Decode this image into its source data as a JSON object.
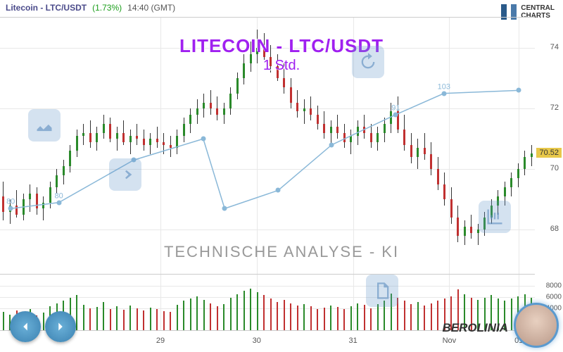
{
  "header": {
    "name": "Litecoin - LTC/USDT",
    "change": "(1.73%)",
    "time": "14:40 (GMT)"
  },
  "logo": {
    "line1": "CENTRAL",
    "line2": "CHARTS"
  },
  "title": "LITECOIN - LTC/USDT",
  "subtitle": "1 Std.",
  "analysis": "TECHNISCHE  ANALYSE - KI",
  "berolinia": "BEROLINIA",
  "price_tag": 70.52,
  "chart": {
    "ylim": [
      66.5,
      75
    ],
    "yticks": [
      68,
      70,
      72,
      74
    ],
    "grid_color": "#e8e8e8",
    "bg": "#ffffff",
    "up_color": "#2a8a2a",
    "down_color": "#c03030",
    "wick_color": "#333333",
    "line_color": "#8ab8d8",
    "candles": [
      {
        "o": 69.1,
        "h": 69.6,
        "l": 68.3,
        "c": 68.6
      },
      {
        "o": 68.6,
        "h": 69.0,
        "l": 68.2,
        "c": 68.8
      },
      {
        "o": 68.8,
        "h": 69.3,
        "l": 68.4,
        "c": 68.5
      },
      {
        "o": 68.5,
        "h": 69.2,
        "l": 68.3,
        "c": 69.0
      },
      {
        "o": 69.0,
        "h": 69.5,
        "l": 68.6,
        "c": 69.2
      },
      {
        "o": 69.2,
        "h": 69.4,
        "l": 68.5,
        "c": 68.7
      },
      {
        "o": 68.7,
        "h": 69.1,
        "l": 68.3,
        "c": 68.9
      },
      {
        "o": 68.9,
        "h": 69.6,
        "l": 68.7,
        "c": 69.4
      },
      {
        "o": 69.4,
        "h": 70.0,
        "l": 69.2,
        "c": 69.8
      },
      {
        "o": 69.8,
        "h": 70.3,
        "l": 69.5,
        "c": 70.1
      },
      {
        "o": 70.1,
        "h": 70.8,
        "l": 69.9,
        "c": 70.6
      },
      {
        "o": 70.6,
        "h": 71.3,
        "l": 70.4,
        "c": 71.1
      },
      {
        "o": 71.1,
        "h": 71.5,
        "l": 70.8,
        "c": 71.2
      },
      {
        "o": 71.2,
        "h": 71.6,
        "l": 70.7,
        "c": 70.9
      },
      {
        "o": 70.9,
        "h": 71.4,
        "l": 70.6,
        "c": 71.2
      },
      {
        "o": 71.2,
        "h": 71.8,
        "l": 71.0,
        "c": 71.5
      },
      {
        "o": 71.5,
        "h": 71.7,
        "l": 70.9,
        "c": 71.0
      },
      {
        "o": 71.0,
        "h": 71.4,
        "l": 70.6,
        "c": 71.2
      },
      {
        "o": 71.2,
        "h": 71.6,
        "l": 70.8,
        "c": 70.9
      },
      {
        "o": 70.9,
        "h": 71.3,
        "l": 70.5,
        "c": 71.1
      },
      {
        "o": 71.1,
        "h": 71.5,
        "l": 70.8,
        "c": 71.0
      },
      {
        "o": 71.0,
        "h": 71.3,
        "l": 70.6,
        "c": 70.8
      },
      {
        "o": 70.8,
        "h": 71.2,
        "l": 70.5,
        "c": 71.0
      },
      {
        "o": 71.0,
        "h": 71.4,
        "l": 70.7,
        "c": 70.9
      },
      {
        "o": 70.9,
        "h": 71.2,
        "l": 70.5,
        "c": 70.8
      },
      {
        "o": 70.8,
        "h": 71.1,
        "l": 70.4,
        "c": 70.7
      },
      {
        "o": 70.7,
        "h": 71.3,
        "l": 70.5,
        "c": 71.1
      },
      {
        "o": 71.1,
        "h": 71.7,
        "l": 70.9,
        "c": 71.5
      },
      {
        "o": 71.5,
        "h": 72.0,
        "l": 71.2,
        "c": 71.8
      },
      {
        "o": 71.8,
        "h": 72.3,
        "l": 71.5,
        "c": 72.0
      },
      {
        "o": 72.0,
        "h": 72.5,
        "l": 71.7,
        "c": 72.2
      },
      {
        "o": 72.2,
        "h": 72.6,
        "l": 71.8,
        "c": 72.0
      },
      {
        "o": 72.0,
        "h": 72.4,
        "l": 71.6,
        "c": 71.8
      },
      {
        "o": 71.8,
        "h": 72.2,
        "l": 71.5,
        "c": 72.0
      },
      {
        "o": 72.0,
        "h": 72.7,
        "l": 71.8,
        "c": 72.5
      },
      {
        "o": 72.5,
        "h": 73.2,
        "l": 72.3,
        "c": 73.0
      },
      {
        "o": 73.0,
        "h": 73.8,
        "l": 72.8,
        "c": 73.5
      },
      {
        "o": 73.5,
        "h": 74.2,
        "l": 73.2,
        "c": 73.8
      },
      {
        "o": 73.8,
        "h": 74.6,
        "l": 73.5,
        "c": 74.0
      },
      {
        "o": 74.0,
        "h": 74.5,
        "l": 73.6,
        "c": 73.7
      },
      {
        "o": 73.7,
        "h": 74.1,
        "l": 73.2,
        "c": 73.4
      },
      {
        "o": 73.4,
        "h": 73.8,
        "l": 72.9,
        "c": 73.0
      },
      {
        "o": 73.0,
        "h": 73.5,
        "l": 72.5,
        "c": 72.7
      },
      {
        "o": 72.7,
        "h": 73.0,
        "l": 72.0,
        "c": 72.2
      },
      {
        "o": 72.2,
        "h": 72.6,
        "l": 71.7,
        "c": 71.9
      },
      {
        "o": 71.9,
        "h": 72.3,
        "l": 71.5,
        "c": 72.0
      },
      {
        "o": 72.0,
        "h": 72.4,
        "l": 71.6,
        "c": 71.8
      },
      {
        "o": 71.8,
        "h": 72.1,
        "l": 71.3,
        "c": 71.5
      },
      {
        "o": 71.5,
        "h": 71.9,
        "l": 71.0,
        "c": 71.2
      },
      {
        "o": 71.2,
        "h": 71.6,
        "l": 70.8,
        "c": 71.4
      },
      {
        "o": 71.4,
        "h": 71.8,
        "l": 71.0,
        "c": 71.2
      },
      {
        "o": 71.2,
        "h": 71.5,
        "l": 70.7,
        "c": 70.9
      },
      {
        "o": 70.9,
        "h": 71.3,
        "l": 70.5,
        "c": 71.1
      },
      {
        "o": 71.1,
        "h": 71.6,
        "l": 70.8,
        "c": 71.4
      },
      {
        "o": 71.4,
        "h": 71.8,
        "l": 71.0,
        "c": 71.2
      },
      {
        "o": 71.2,
        "h": 71.5,
        "l": 70.7,
        "c": 70.9
      },
      {
        "o": 70.9,
        "h": 71.4,
        "l": 70.6,
        "c": 71.2
      },
      {
        "o": 71.2,
        "h": 71.7,
        "l": 70.9,
        "c": 71.5
      },
      {
        "o": 71.5,
        "h": 72.2,
        "l": 71.2,
        "c": 71.9
      },
      {
        "o": 71.9,
        "h": 72.4,
        "l": 71.2,
        "c": 71.3
      },
      {
        "o": 71.3,
        "h": 71.8,
        "l": 70.6,
        "c": 70.8
      },
      {
        "o": 70.8,
        "h": 71.2,
        "l": 70.2,
        "c": 70.4
      },
      {
        "o": 70.4,
        "h": 71.0,
        "l": 70.0,
        "c": 70.7
      },
      {
        "o": 70.7,
        "h": 71.2,
        "l": 70.3,
        "c": 70.5
      },
      {
        "o": 70.5,
        "h": 70.9,
        "l": 69.8,
        "c": 70.0
      },
      {
        "o": 70.0,
        "h": 70.4,
        "l": 69.3,
        "c": 69.5
      },
      {
        "o": 69.5,
        "h": 69.9,
        "l": 68.8,
        "c": 69.0
      },
      {
        "o": 69.0,
        "h": 69.4,
        "l": 68.2,
        "c": 68.4
      },
      {
        "o": 68.4,
        "h": 68.8,
        "l": 67.6,
        "c": 67.8
      },
      {
        "o": 67.8,
        "h": 68.3,
        "l": 67.5,
        "c": 68.1
      },
      {
        "o": 68.1,
        "h": 68.5,
        "l": 67.7,
        "c": 67.9
      },
      {
        "o": 67.9,
        "h": 68.2,
        "l": 67.5,
        "c": 68.0
      },
      {
        "o": 68.0,
        "h": 68.6,
        "l": 67.8,
        "c": 68.4
      },
      {
        "o": 68.4,
        "h": 69.0,
        "l": 68.2,
        "c": 68.8
      },
      {
        "o": 68.8,
        "h": 69.3,
        "l": 68.5,
        "c": 69.1
      },
      {
        "o": 69.1,
        "h": 69.6,
        "l": 68.8,
        "c": 69.4
      },
      {
        "o": 69.4,
        "h": 69.9,
        "l": 69.1,
        "c": 69.7
      },
      {
        "o": 69.7,
        "h": 70.2,
        "l": 69.4,
        "c": 70.0
      },
      {
        "o": 70.0,
        "h": 70.6,
        "l": 69.8,
        "c": 70.4
      },
      {
        "o": 70.4,
        "h": 70.8,
        "l": 70.1,
        "c": 70.52
      }
    ],
    "line_points": [
      {
        "x": 0.02,
        "y": 68.7,
        "label": "80"
      },
      {
        "x": 0.11,
        "y": 68.9,
        "label": "80"
      },
      {
        "x": 0.25,
        "y": 70.3,
        "label": ""
      },
      {
        "x": 0.38,
        "y": 71.0,
        "label": ""
      },
      {
        "x": 0.42,
        "y": 68.7,
        "label": ""
      },
      {
        "x": 0.52,
        "y": 69.3,
        "label": ""
      },
      {
        "x": 0.62,
        "y": 70.8,
        "label": ""
      },
      {
        "x": 0.74,
        "y": 71.8,
        "label": "91"
      },
      {
        "x": 0.83,
        "y": 72.5,
        "label": "103"
      },
      {
        "x": 0.97,
        "y": 72.6,
        "label": ""
      }
    ]
  },
  "volume": {
    "ylim": [
      0,
      10000
    ],
    "yticks": [
      4000,
      6000,
      8000
    ],
    "up_color": "#2a8a2a",
    "down_color": "#c03030",
    "bars": [
      3200,
      2800,
      3500,
      3000,
      3800,
      2600,
      3100,
      4200,
      4800,
      5200,
      5800,
      6200,
      4500,
      3900,
      4100,
      5000,
      3800,
      4200,
      3600,
      4400,
      3900,
      3500,
      4000,
      3700,
      3400,
      3300,
      4500,
      5200,
      5600,
      6000,
      5400,
      4800,
      4200,
      4600,
      5800,
      6400,
      7000,
      7400,
      6800,
      6200,
      5600,
      5000,
      5400,
      4800,
      4400,
      4600,
      4200,
      3800,
      4000,
      4400,
      4100,
      3700,
      4200,
      4800,
      4500,
      3900,
      4600,
      5200,
      6500,
      5800,
      5200,
      4600,
      5000,
      4400,
      4800,
      5200,
      5600,
      6000,
      7200,
      6400,
      5800,
      5400,
      5800,
      6200,
      5600,
      5200,
      5600,
      6000,
      6400,
      5800
    ]
  },
  "x_ticks": [
    {
      "x": 0.3,
      "label": "29"
    },
    {
      "x": 0.48,
      "label": "30"
    },
    {
      "x": 0.66,
      "label": "31"
    },
    {
      "x": 0.84,
      "label": "Nov"
    },
    {
      "x": 0.97,
      "label": "01"
    }
  ]
}
